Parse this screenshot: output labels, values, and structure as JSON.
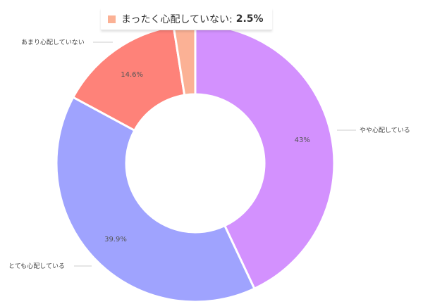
{
  "chart_data": {
    "type": "pie",
    "donut": true,
    "slices": [
      {
        "label": "やや心配している",
        "value": 43,
        "value_label": "43%",
        "color": "#d391fe"
      },
      {
        "label": "とても心配している",
        "value": 39.9,
        "value_label": "39.9%",
        "color": "#9fa3fe"
      },
      {
        "label": "あまり心配していない",
        "value": 14.6,
        "value_label": "14.6%",
        "color": "#fe8279"
      },
      {
        "label": "まったく心配していない",
        "value": 2.5,
        "value_label": "2.5%",
        "color": "#fbb195"
      }
    ]
  },
  "tooltip": {
    "label": "まったく心配していない:",
    "value": "2.5%",
    "color": "#fbb195"
  }
}
